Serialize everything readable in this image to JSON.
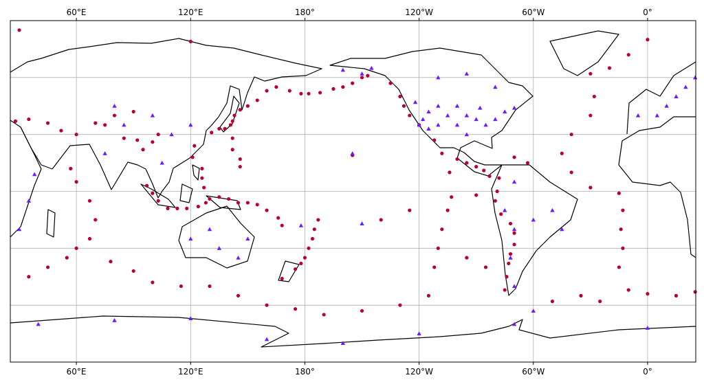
{
  "map": {
    "xlim": [
      25.3,
      385.3
    ],
    "ylim": [
      -90,
      90
    ],
    "lon_ticks": [
      {
        "value": 60,
        "label": "60°E"
      },
      {
        "value": 120,
        "label": "120°E"
      },
      {
        "value": 180,
        "label": "180°"
      },
      {
        "value": 240,
        "label": "120°W"
      },
      {
        "value": 300,
        "label": "60°W"
      },
      {
        "value": 360,
        "label": "0°"
      }
    ],
    "lat_gridlines": [
      60,
      30,
      0,
      -30,
      -60
    ],
    "grid": true,
    "earthquakes": {
      "color": "#b8002f",
      "points": [
        [
          -178,
          51.5
        ],
        [
          -172,
          52
        ],
        [
          -165,
          54
        ],
        [
          -160,
          55
        ],
        [
          -155,
          57
        ],
        [
          -150,
          60
        ],
        [
          -147,
          61
        ],
        [
          178,
          51.5
        ],
        [
          172,
          53
        ],
        [
          165,
          55
        ],
        [
          160,
          53
        ],
        [
          155,
          48
        ],
        [
          150,
          45
        ],
        [
          146,
          43
        ],
        [
          143,
          40
        ],
        [
          142,
          37
        ],
        [
          141,
          35
        ],
        [
          138,
          33
        ],
        [
          135,
          33
        ],
        [
          131,
          31
        ],
        [
          142,
          28
        ],
        [
          142,
          22
        ],
        [
          146,
          17
        ],
        [
          146,
          13
        ],
        [
          122,
          24
        ],
        [
          121,
          18
        ],
        [
          126,
          12
        ],
        [
          126,
          7
        ],
        [
          127,
          2
        ],
        [
          97,
          3
        ],
        [
          100,
          -1
        ],
        [
          103,
          -5
        ],
        [
          108,
          -9
        ],
        [
          113,
          -9
        ],
        [
          118,
          -9
        ],
        [
          124,
          -8
        ],
        [
          128,
          -6
        ],
        [
          130,
          -4
        ],
        [
          135,
          -3
        ],
        [
          140,
          -4
        ],
        [
          145,
          -6
        ],
        [
          150,
          -6
        ],
        [
          155,
          -7
        ],
        [
          160,
          -10
        ],
        [
          166,
          -14
        ],
        [
          168,
          -18
        ],
        [
          -173,
          -15
        ],
        [
          -175,
          -20
        ],
        [
          -176,
          -25
        ],
        [
          -178,
          -30
        ],
        [
          180,
          -35
        ],
        [
          178,
          -38
        ],
        [
          175,
          -41
        ],
        [
          168,
          -46
        ],
        [
          70,
          36
        ],
        [
          75,
          35
        ],
        [
          85,
          28
        ],
        [
          92,
          27
        ],
        [
          95,
          22
        ],
        [
          100,
          26
        ],
        [
          103,
          30
        ],
        [
          80,
          40
        ],
        [
          90,
          42
        ],
        [
          60,
          30
        ],
        [
          52,
          32
        ],
        [
          45,
          36
        ],
        [
          35,
          38
        ],
        [
          28,
          37
        ],
        [
          57,
          12
        ],
        [
          60,
          5
        ],
        [
          67,
          -5
        ],
        [
          70,
          -15
        ],
        [
          67,
          -25
        ],
        [
          60,
          -30
        ],
        [
          55,
          -35
        ],
        [
          45,
          -40
        ],
        [
          35,
          -45
        ],
        [
          78,
          -37
        ],
        [
          90,
          -42
        ],
        [
          100,
          -48
        ],
        [
          115,
          -50
        ],
        [
          130,
          -50
        ],
        [
          145,
          -55
        ],
        [
          160,
          -60
        ],
        [
          175,
          -62
        ],
        [
          -170,
          -65
        ],
        [
          -150,
          -63
        ],
        [
          -130,
          -60
        ],
        [
          -115,
          -55
        ],
        [
          -112,
          -40
        ],
        [
          -110,
          -30
        ],
        [
          -108,
          -20
        ],
        [
          -105,
          -10
        ],
        [
          -103,
          -3
        ],
        [
          -104,
          10
        ],
        [
          -108,
          20
        ],
        [
          -112,
          27
        ],
        [
          -120,
          35
        ],
        [
          -125,
          40
        ],
        [
          -128,
          45
        ],
        [
          -130,
          50
        ],
        [
          -135,
          57
        ],
        [
          -100,
          17
        ],
        [
          -95,
          15
        ],
        [
          -90,
          13
        ],
        [
          -86,
          11
        ],
        [
          -83,
          8
        ],
        [
          -78,
          7
        ],
        [
          -70,
          18
        ],
        [
          -63,
          15
        ],
        [
          -79,
          0
        ],
        [
          -80,
          -5
        ],
        [
          -77,
          -12
        ],
        [
          -72,
          -17
        ],
        [
          -70,
          -22
        ],
        [
          -70,
          -28
        ],
        [
          -72,
          -33
        ],
        [
          -73,
          -38
        ],
        [
          -74,
          -45
        ],
        [
          -75,
          -52
        ],
        [
          -90,
          -2
        ],
        [
          -95,
          -35
        ],
        [
          -85,
          -40
        ],
        [
          -30,
          62
        ],
        [
          -20,
          65
        ],
        [
          -28,
          50
        ],
        [
          -30,
          40
        ],
        [
          -40,
          30
        ],
        [
          -45,
          20
        ],
        [
          -40,
          10
        ],
        [
          -30,
          2
        ],
        [
          -15,
          -1
        ],
        [
          -13,
          -10
        ],
        [
          -14,
          -20
        ],
        [
          -13,
          -30
        ],
        [
          -15,
          -40
        ],
        [
          -10,
          -52
        ],
        [
          -25,
          -58
        ],
        [
          -50,
          -58
        ],
        [
          -35,
          -55
        ],
        [
          0,
          -54
        ],
        [
          15,
          -55
        ],
        [
          25,
          -53
        ],
        [
          0,
          80
        ],
        [
          30,
          85
        ],
        [
          120,
          79
        ],
        [
          -10,
          72
        ],
        [
          -155,
          19
        ],
        [
          -125,
          -10
        ],
        [
          -140,
          -15
        ]
      ]
    },
    "stations": {
      "color": "#6a1bff",
      "points": [
        [
          -120,
          35
        ],
        [
          -118,
          38
        ],
        [
          -115,
          42
        ],
        [
          -110,
          45
        ],
        [
          -105,
          40
        ],
        [
          -100,
          35
        ],
        [
          -95,
          40
        ],
        [
          -90,
          38
        ],
        [
          -85,
          35
        ],
        [
          -80,
          38
        ],
        [
          -75,
          42
        ],
        [
          -70,
          44
        ],
        [
          -95,
          30
        ],
        [
          -100,
          45
        ],
        [
          -110,
          35
        ],
        [
          -122,
          47
        ],
        [
          -115,
          33
        ],
        [
          -88,
          44
        ],
        [
          -150,
          62
        ],
        [
          -145,
          65
        ],
        [
          -160,
          64
        ],
        [
          -110,
          60
        ],
        [
          -95,
          62
        ],
        [
          -80,
          55
        ],
        [
          -75,
          -10
        ],
        [
          -70,
          -20
        ],
        [
          -72,
          -35
        ],
        [
          -70,
          -50
        ],
        [
          -60,
          -15
        ],
        [
          -50,
          -10
        ],
        [
          -45,
          -20
        ],
        [
          -70,
          5
        ],
        [
          10,
          45
        ],
        [
          15,
          50
        ],
        [
          20,
          55
        ],
        [
          5,
          40
        ],
        [
          -5,
          40
        ],
        [
          25,
          60
        ],
        [
          30,
          -20
        ],
        [
          35,
          -5
        ],
        [
          38,
          9
        ],
        [
          80,
          45
        ],
        [
          85,
          35
        ],
        [
          100,
          40
        ],
        [
          110,
          30
        ],
        [
          120,
          35
        ],
        [
          105,
          15
        ],
        [
          75,
          20
        ],
        [
          120,
          -25
        ],
        [
          130,
          -20
        ],
        [
          135,
          -30
        ],
        [
          145,
          -35
        ],
        [
          150,
          -25
        ],
        [
          0,
          -72
        ],
        [
          40,
          -70
        ],
        [
          80,
          -68
        ],
        [
          120,
          -67
        ],
        [
          160,
          -78
        ],
        [
          -160,
          -80
        ],
        [
          -120,
          -75
        ],
        [
          -70,
          -70
        ],
        [
          -60,
          -63
        ],
        [
          -155,
          20
        ],
        [
          178,
          -18
        ],
        [
          -150,
          -17
        ]
      ]
    }
  }
}
